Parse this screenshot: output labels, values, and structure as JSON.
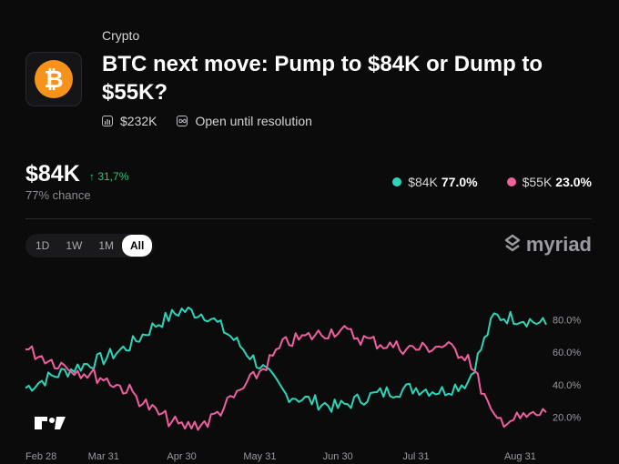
{
  "market": {
    "category": "Crypto",
    "title": "BTC next move: Pump to $84K or Dump to $55K?",
    "volume": "$232K",
    "status": "Open until resolution",
    "icon": "bitcoin-icon"
  },
  "summary": {
    "price": "$84K",
    "change": "↑ 31,7%",
    "chance": "77% chance"
  },
  "legend": [
    {
      "label": "$84K",
      "value": "77.0%",
      "color": "#2dd4b8"
    },
    {
      "label": "$55K",
      "value": "23.0%",
      "color": "#f0609e"
    }
  ],
  "ranges": [
    "1D",
    "1W",
    "1M",
    "All"
  ],
  "active_range": "All",
  "brand": {
    "name": "myriad"
  },
  "tv_logo": "TV",
  "chart_data": {
    "type": "line",
    "x_tick_labels": [
      "Feb 28",
      "Mar 31",
      "Apr 30",
      "May 31",
      "Jun 30",
      "Jul 31",
      "Aug 31"
    ],
    "y_tick_labels": [
      "80.0%",
      "60.0%",
      "40.0%",
      "20.0%"
    ],
    "y_ticks": [
      80,
      60,
      40,
      20
    ],
    "ylim": [
      8,
      92
    ],
    "grid": false,
    "x_dates": [
      "Feb 28",
      "Mar 10",
      "Mar 20",
      "Mar 31",
      "Apr 10",
      "Apr 20",
      "Apr 30",
      "May 10",
      "May 20",
      "May 31",
      "Jun 10",
      "Jun 20",
      "Jun 30",
      "Jul 10",
      "Jul 20",
      "Jul 31",
      "Aug 10",
      "Aug 15",
      "Aug 20",
      "Aug 31",
      "Sep 5"
    ],
    "series": [
      {
        "name": "$84K",
        "color": "#2dd4b8",
        "values": [
          38,
          45,
          51,
          56,
          64,
          77,
          86,
          83,
          68,
          52,
          34,
          30,
          26,
          32,
          36,
          38,
          36,
          42,
          82,
          81,
          77
        ]
      },
      {
        "name": "$55K",
        "color": "#f0609e",
        "values": [
          62,
          55,
          49,
          44,
          36,
          23,
          14,
          17,
          32,
          48,
          66,
          70,
          74,
          68,
          64,
          62,
          64,
          58,
          18,
          19,
          23
        ]
      }
    ]
  }
}
